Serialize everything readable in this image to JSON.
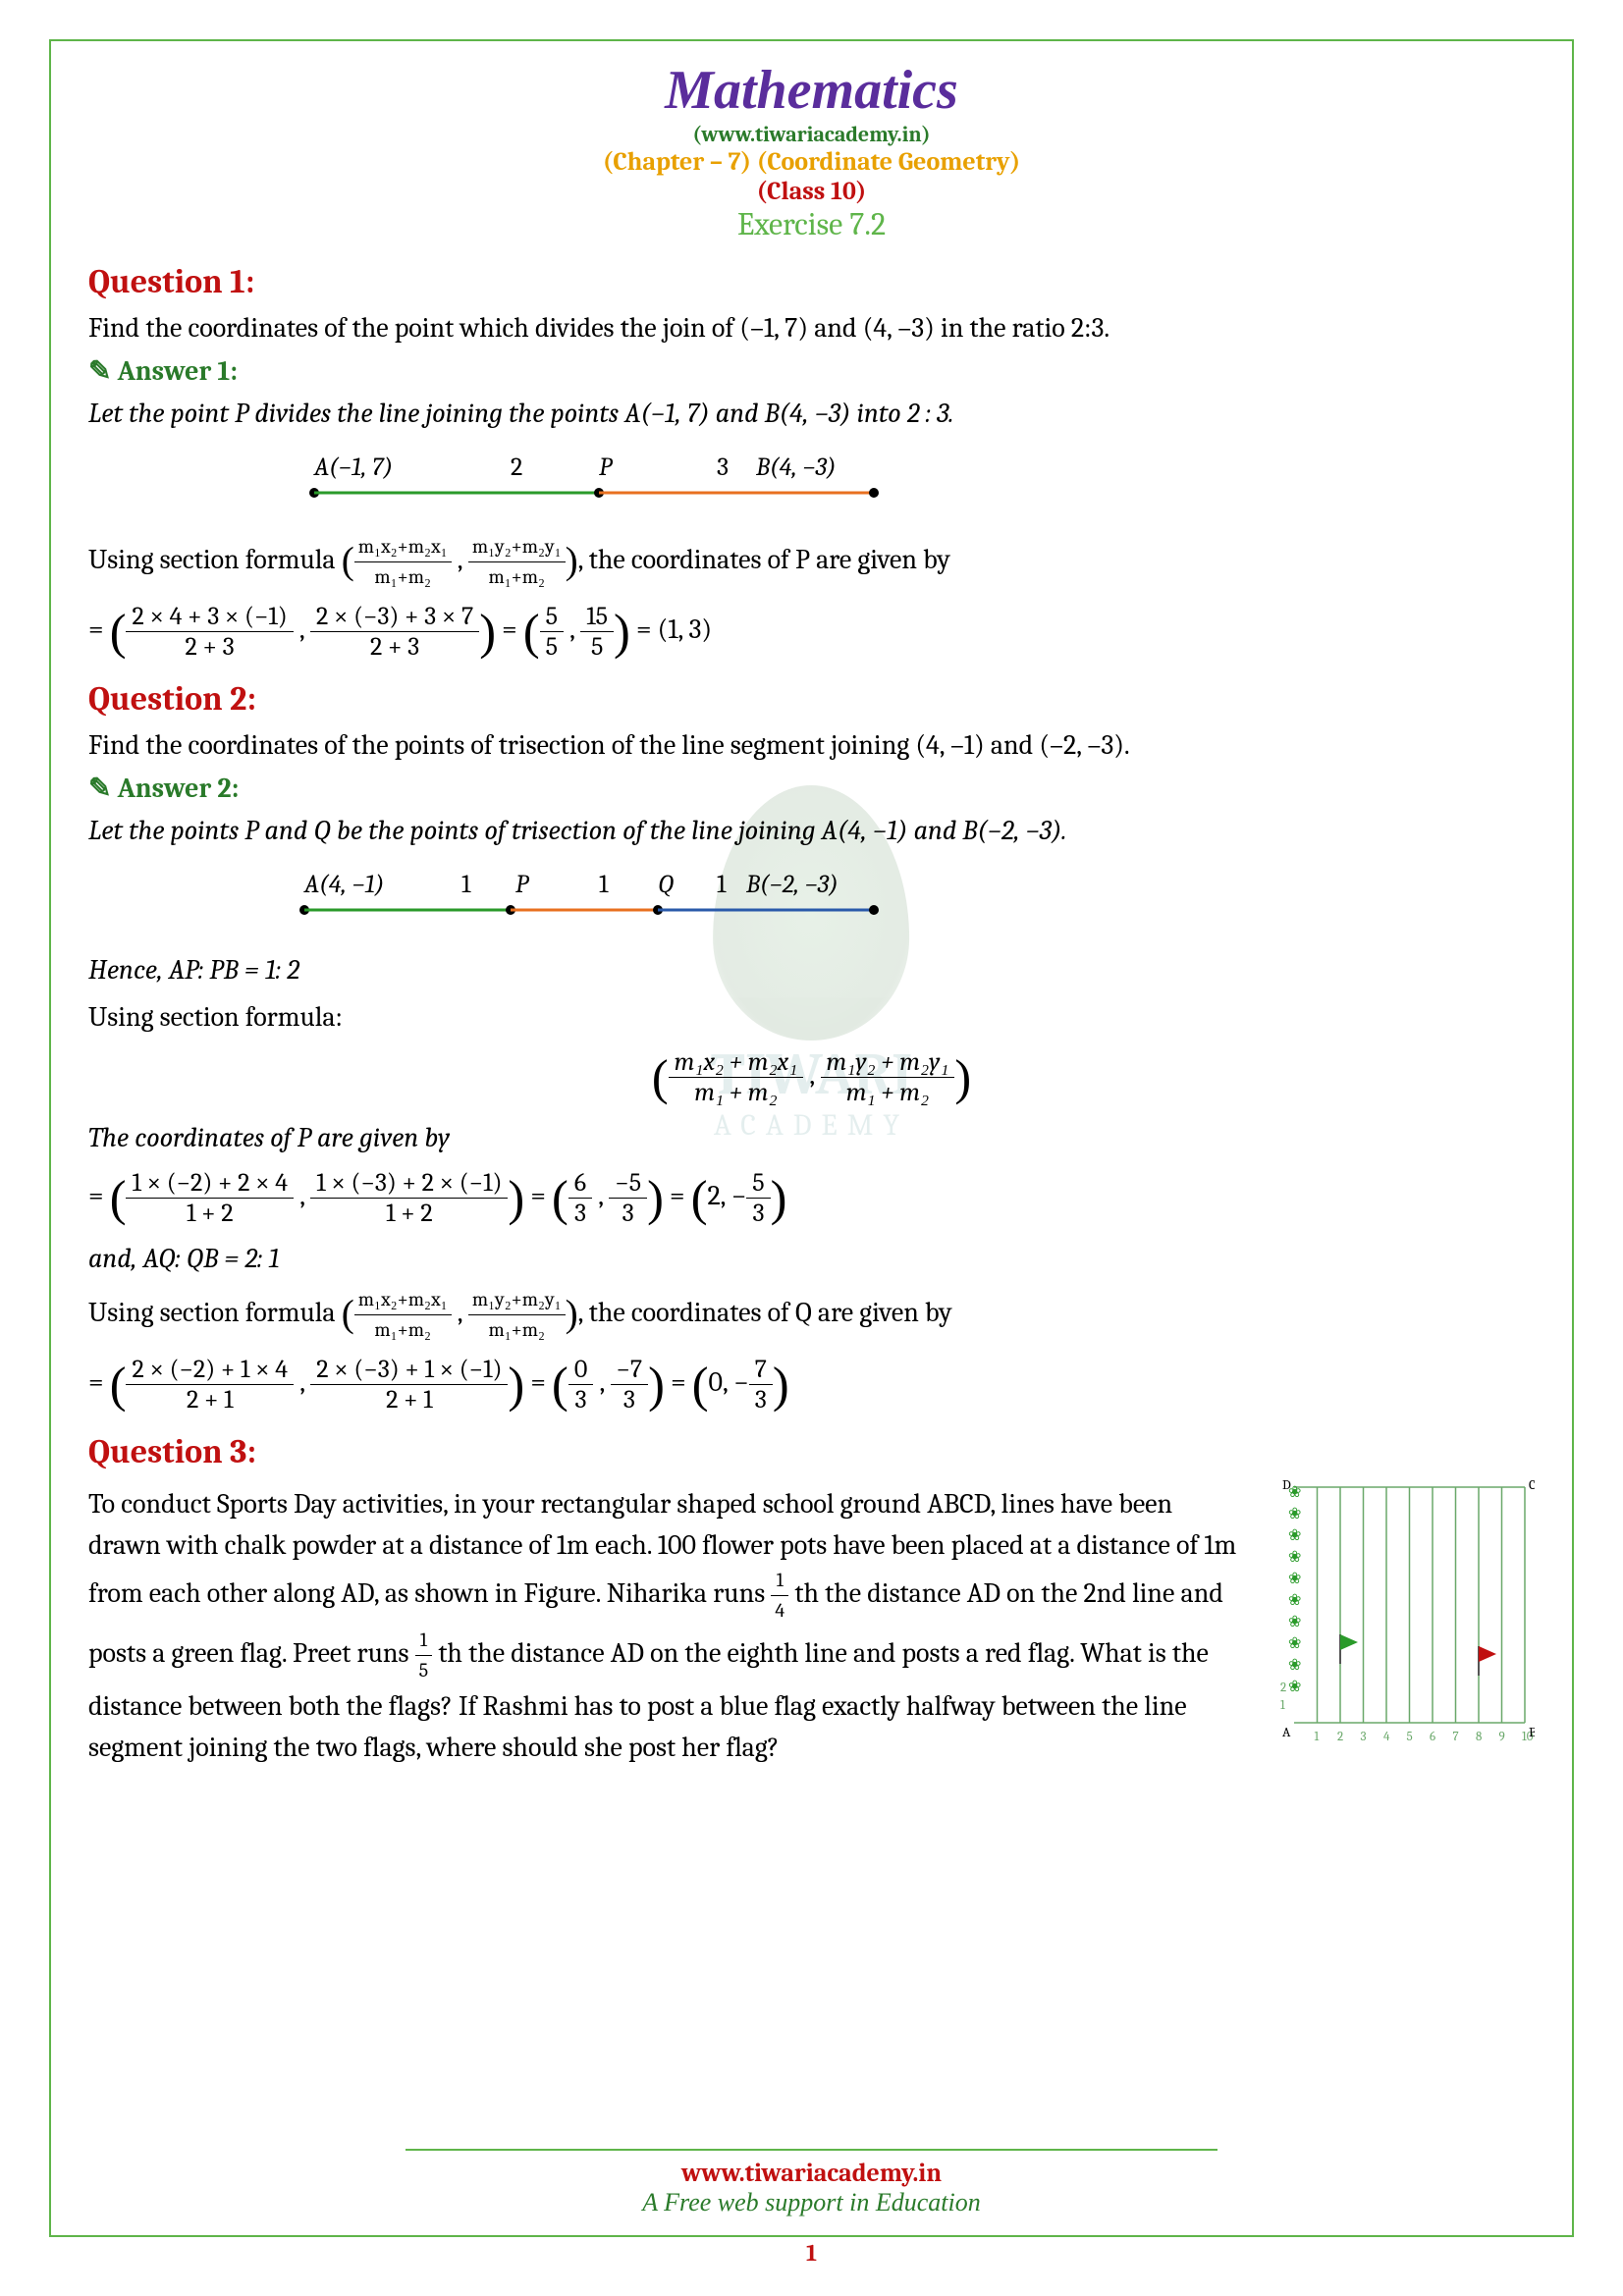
{
  "header": {
    "title": "Mathematics",
    "site": "(www.tiwariacademy.in)",
    "chapter": "(Chapter – 7) (Coordinate Geometry)",
    "class": "(Class 10)",
    "exercise": "Exercise 7.2"
  },
  "q1": {
    "title": "Question 1:",
    "text": "Find the coordinates of the point which divides the join of (–1, 7) and (4, –3) in the ratio 2:3.",
    "answer_title": "Answer 1:",
    "intro": "Let the point P divides the line joining the points A(−1, 7) and B(4, −3) into 2 : 3.",
    "diagram": {
      "A_label": "A(−1, 7)",
      "m1": "2",
      "P": "P",
      "m2": "3",
      "B_label": "B(4, −3)",
      "seg1_color": "#2a9a2a",
      "seg2_color": "#e87020"
    },
    "formula_intro": "Using section formula ",
    "formula_x_num": "m₁x₂+m₂x₁",
    "formula_x_den": "m₁+m₂",
    "formula_y_num": "m₁y₂+m₂y₁",
    "formula_y_den": "m₁+m₂",
    "formula_outro": ",  the coordinates of P are given by",
    "calc_x_num": "2 × 4 + 3 × (−1)",
    "calc_x_den": "2 + 3",
    "calc_y_num": "2 × (−3) + 3 × 7",
    "calc_y_den": "2 + 3",
    "mid_x_num": "5",
    "mid_x_den": "5",
    "mid_y_num": "15",
    "mid_y_den": "5",
    "result": "(1, 3)"
  },
  "q2": {
    "title": "Question 2:",
    "text": "Find the coordinates of the points of trisection of the line segment joining (4, –1) and (–2, –3).",
    "answer_title": "Answer 2:",
    "intro": "Let the points P and  Q be the points of trisection of the line joining A(4, −1) and B(−2, −3).",
    "diagram": {
      "A_label": "A(4, −1)",
      "r1": "1",
      "P": "P",
      "r2": "1",
      "Q": "Q",
      "r3": "1",
      "B_label": "B(−2, −3)",
      "seg1_color": "#2a9a2a",
      "seg2_color": "#e87020",
      "seg3_color": "#2a5aaa"
    },
    "ap_pb": "Hence, AP: PB = 1: 2",
    "using": "Using section formula:",
    "formula_x_num": "m₁x₂ + m₂x₁",
    "formula_x_den": "m₁ + m₂",
    "formula_y_num": "m₁y₂ + m₂y₁",
    "formula_y_den": "m₁ + m₂",
    "p_intro": " The coordinates of P are given by",
    "p_x_num": "1 × (−2) + 2 × 4",
    "p_x_den": "1 + 2",
    "p_y_num": "1 × (−3) + 2 × (−1)",
    "p_y_den": "1 + 2",
    "p_mid_x_num": "6",
    "p_mid_x_den": "3",
    "p_mid_y_num": "−5",
    "p_mid_y_den": "3",
    "p_res_pre": "2, −",
    "p_res_frac_num": "5",
    "p_res_frac_den": "3",
    "aq_qb": "and, AQ: QB = 2: 1",
    "q_formula_intro": "Using section formula ",
    "q_formula_outro": ",  the coordinates of Q are given by",
    "q_x_num": "2 × (−2) + 1 × 4",
    "q_x_den": "2 + 1",
    "q_y_num": "2 × (−3) + 1 × (−1)",
    "q_y_den": "2 + 1",
    "q_mid_x_num": "0",
    "q_mid_x_den": "3",
    "q_mid_y_num": "−7",
    "q_mid_y_den": "3",
    "q_res_pre": "0, −",
    "q_res_frac_num": "7",
    "q_res_frac_den": "3"
  },
  "q3": {
    "title": "Question 3:",
    "text1": " To conduct Sports Day activities, in your rectangular shaped school ground ABCD, lines have been drawn with chalk powder at a distance of 1m each. 100 flower pots have been placed at a distance of 1m from each other along AD, as shown in Figure. Niharika runs ",
    "f1_num": "1",
    "f1_den": "4",
    "text2": " th the distance AD on the 2nd line and posts a green flag. Preet runs ",
    "f2_num": "1",
    "f2_den": "5",
    "text3": " th the distance AD on the eighth line and posts a red flag. What is the distance between both the flags? If Rashmi has to post a blue flag exactly halfway between the line segment joining the two flags, where should she post her flag?",
    "graph": {
      "line_color": "#6aa86a",
      "flag_green": "#2a9a2a",
      "flag_red": "#c01010",
      "cols": 10,
      "labels_D": "D",
      "labels_C": "C",
      "labels_A": "A",
      "labels_B": "B",
      "xticks": [
        "1",
        "2",
        "3",
        "4",
        "5",
        "6",
        "7",
        "8",
        "9",
        "10"
      ],
      "yticks": [
        "1",
        "2"
      ],
      "pots_count": 10
    }
  },
  "footer": {
    "site": "www.tiwariacademy.in",
    "tag": "A Free web support in Education",
    "page": "1"
  },
  "watermark": {
    "name": "TIWARI",
    "sub": "ACADEMY"
  }
}
